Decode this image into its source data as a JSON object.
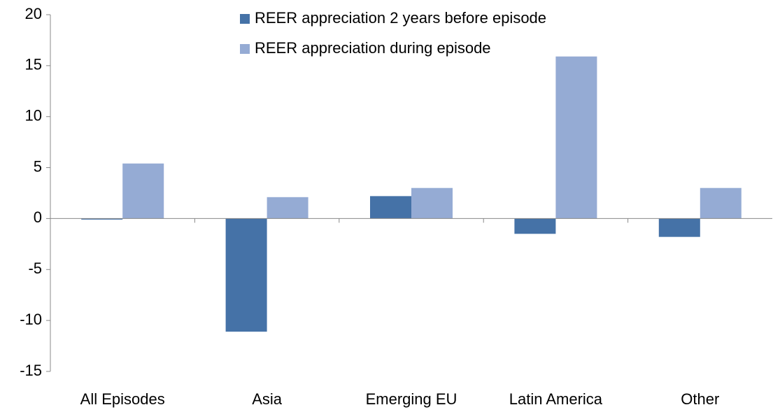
{
  "chart_data": {
    "type": "bar",
    "categories": [
      "All Episodes",
      "Asia",
      "Emerging EU",
      "Latin America",
      "Other"
    ],
    "series": [
      {
        "name": "REER appreciation 2 years before episode",
        "color": "#4572a7",
        "values": [
          -0.1,
          -11.1,
          2.2,
          -1.5,
          -1.8
        ]
      },
      {
        "name": "REER appreciation during episode",
        "color": "#95abd4",
        "values": [
          5.4,
          2.1,
          3.0,
          15.9,
          3.0
        ]
      }
    ],
    "ylim": [
      -15,
      20
    ],
    "yticks": [
      -15,
      -10,
      -5,
      0,
      5,
      10,
      15,
      20
    ],
    "grid": false,
    "legend": "top"
  }
}
